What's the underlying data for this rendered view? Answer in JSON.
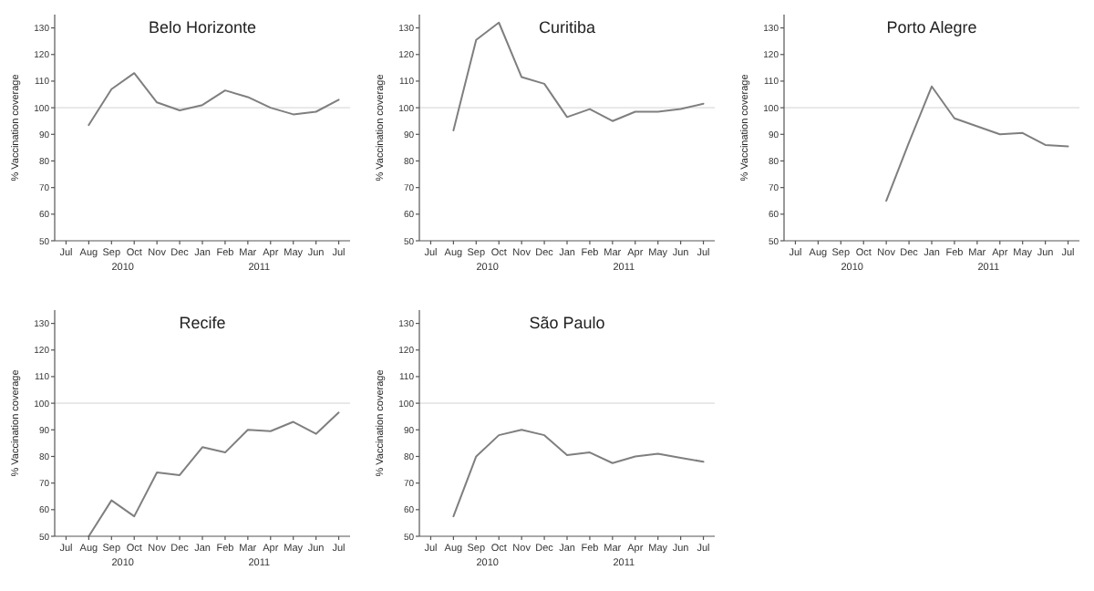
{
  "chart_data": [
    {
      "type": "line",
      "title": "Belo Horizonte",
      "ylabel": "% Vaccination coverage",
      "categories": [
        "Jul",
        "Aug",
        "Sep",
        "Oct",
        "Nov",
        "Dec",
        "Jan",
        "Feb",
        "Mar",
        "Apr",
        "May",
        "Jun",
        "Jul"
      ],
      "series": [
        {
          "color": "#7f7f7f",
          "values": [
            null,
            93.5,
            107,
            113,
            102,
            99,
            101,
            106.5,
            104,
            100,
            97.5,
            98.5,
            103
          ]
        }
      ],
      "ylim": [
        50,
        135
      ],
      "yticks": [
        50,
        60,
        70,
        80,
        90,
        100,
        110,
        120,
        130
      ],
      "ref_lines": [
        {
          "axis": "y",
          "value": 100,
          "color": "#e6e6e6"
        }
      ],
      "annotations": [
        "2010",
        "2011"
      ]
    },
    {
      "type": "line",
      "title": "Curitiba",
      "ylabel": "% Vaccination coverage",
      "categories": [
        "Jul",
        "Aug",
        "Sep",
        "Oct",
        "Nov",
        "Dec",
        "Jan",
        "Feb",
        "Mar",
        "Apr",
        "May",
        "Jun",
        "Jul"
      ],
      "series": [
        {
          "color": "#7f7f7f",
          "values": [
            null,
            91.5,
            125.5,
            132,
            111.5,
            109,
            96.5,
            99.5,
            95,
            98.5,
            98.5,
            99.5,
            101.5
          ]
        }
      ],
      "ylim": [
        50,
        135
      ],
      "yticks": [
        50,
        60,
        70,
        80,
        90,
        100,
        110,
        120,
        130
      ],
      "ref_lines": [
        {
          "axis": "y",
          "value": 100,
          "color": "#e6e6e6"
        }
      ],
      "annotations": [
        "2010",
        "2011"
      ]
    },
    {
      "type": "line",
      "title": "Porto Alegre",
      "ylabel": "% Vaccination coverage",
      "categories": [
        "Jul",
        "Aug",
        "Sep",
        "Oct",
        "Nov",
        "Dec",
        "Jan",
        "Feb",
        "Mar",
        "Apr",
        "May",
        "Jun",
        "Jul"
      ],
      "series": [
        {
          "color": "#7f7f7f",
          "values": [
            null,
            null,
            null,
            null,
            65,
            87,
            108,
            96,
            93,
            90,
            90.5,
            86,
            85.5
          ]
        }
      ],
      "ylim": [
        50,
        135
      ],
      "yticks": [
        50,
        60,
        70,
        80,
        90,
        100,
        110,
        120,
        130
      ],
      "ref_lines": [
        {
          "axis": "y",
          "value": 100,
          "color": "#e6e6e6"
        }
      ],
      "annotations": [
        "2010",
        "2011"
      ]
    },
    {
      "type": "line",
      "title": "Recife",
      "ylabel": "% Vaccination coverage",
      "categories": [
        "Jul",
        "Aug",
        "Sep",
        "Oct",
        "Nov",
        "Dec",
        "Jan",
        "Feb",
        "Mar",
        "Apr",
        "May",
        "Jun",
        "Jul"
      ],
      "series": [
        {
          "color": "#7f7f7f",
          "values": [
            null,
            50,
            63.5,
            57.5,
            74,
            73,
            83.5,
            81.5,
            90,
            89.5,
            93,
            88.5,
            96.5
          ]
        }
      ],
      "ylim": [
        50,
        135
      ],
      "yticks": [
        50,
        60,
        70,
        80,
        90,
        100,
        110,
        120,
        130
      ],
      "ref_lines": [
        {
          "axis": "y",
          "value": 100,
          "color": "#e6e6e6"
        }
      ],
      "annotations": [
        "2010",
        "2011"
      ]
    },
    {
      "type": "line",
      "title": "São Paulo",
      "ylabel": "% Vaccination coverage",
      "categories": [
        "Jul",
        "Aug",
        "Sep",
        "Oct",
        "Nov",
        "Dec",
        "Jan",
        "Feb",
        "Mar",
        "Apr",
        "May",
        "Jun",
        "Jul"
      ],
      "series": [
        {
          "color": "#7f7f7f",
          "values": [
            null,
            57.5,
            80,
            88,
            90,
            88,
            80.5,
            81.5,
            77.5,
            80,
            81,
            79.5,
            78
          ]
        }
      ],
      "ylim": [
        50,
        135
      ],
      "yticks": [
        50,
        60,
        70,
        80,
        90,
        100,
        110,
        120,
        130
      ],
      "ref_lines": [
        {
          "axis": "y",
          "value": 100,
          "color": "#e6e6e6"
        }
      ],
      "annotations": [
        "2010",
        "2011"
      ]
    }
  ]
}
